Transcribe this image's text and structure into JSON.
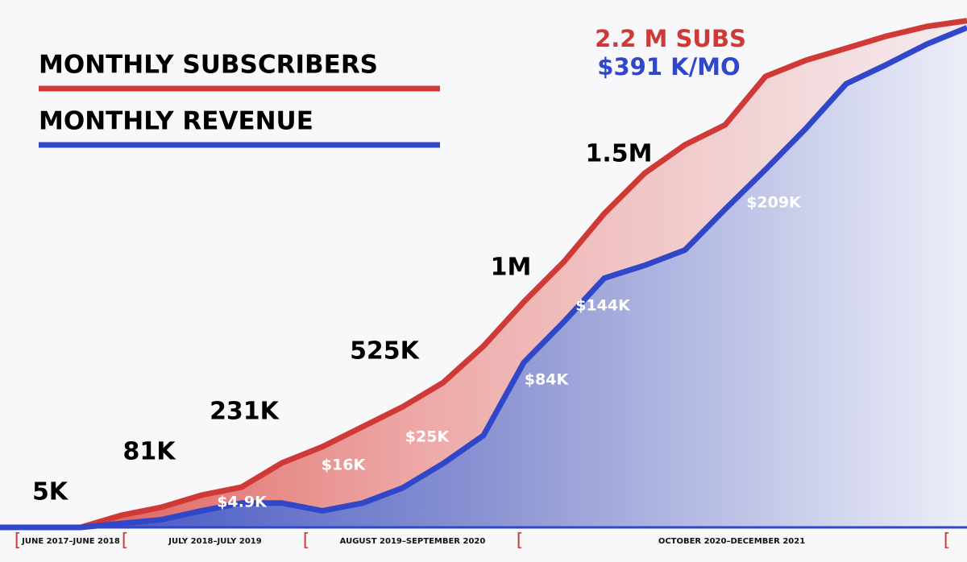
{
  "chart_data": {
    "type": "area",
    "series": [
      {
        "name": "MONTHLY SUBSCRIBERS",
        "color": "#d03a36",
        "values": [
          0,
          0,
          0,
          52000,
          87000,
          140000,
          175000,
          280000,
          350000,
          437000,
          524000,
          629000,
          787000,
          979000,
          1154000,
          1363000,
          1538000,
          1661000,
          1748000,
          1958000,
          2028000,
          2080000,
          2133000,
          2175000,
          2200000
        ]
      },
      {
        "name": "MONTHLY REVENUE",
        "color": "#2f47c8",
        "axis": "y2",
        "values": [
          0,
          0,
          0,
          3000,
          6000,
          13000,
          19000,
          19000,
          13000,
          19000,
          31000,
          50000,
          72000,
          129000,
          161000,
          195000,
          205000,
          217000,
          249000,
          280000,
          312000,
          347000,
          362000,
          378000,
          391000
        ]
      }
    ],
    "ylim": [
      0,
      2220000
    ],
    "y2lim": [
      0,
      400000
    ],
    "subscriber_labels": [
      "5K",
      "81K",
      "231K",
      "525K",
      "1M",
      "1.5M"
    ],
    "revenue_labels": [
      "$4.9K",
      "$16K",
      "$25K",
      "$84K",
      "$144K",
      "$209K"
    ],
    "final_subscribers": "2.2 M SUBS",
    "final_revenue": "$391 K/MO",
    "periods": [
      "JUNE 2017–JUNE 2018",
      "JULY 2018–JULY 2019",
      "AUGUST 2019–SEPTEMBER 2020",
      "OCTOBER 2020–DECEMBER 2021"
    ]
  }
}
